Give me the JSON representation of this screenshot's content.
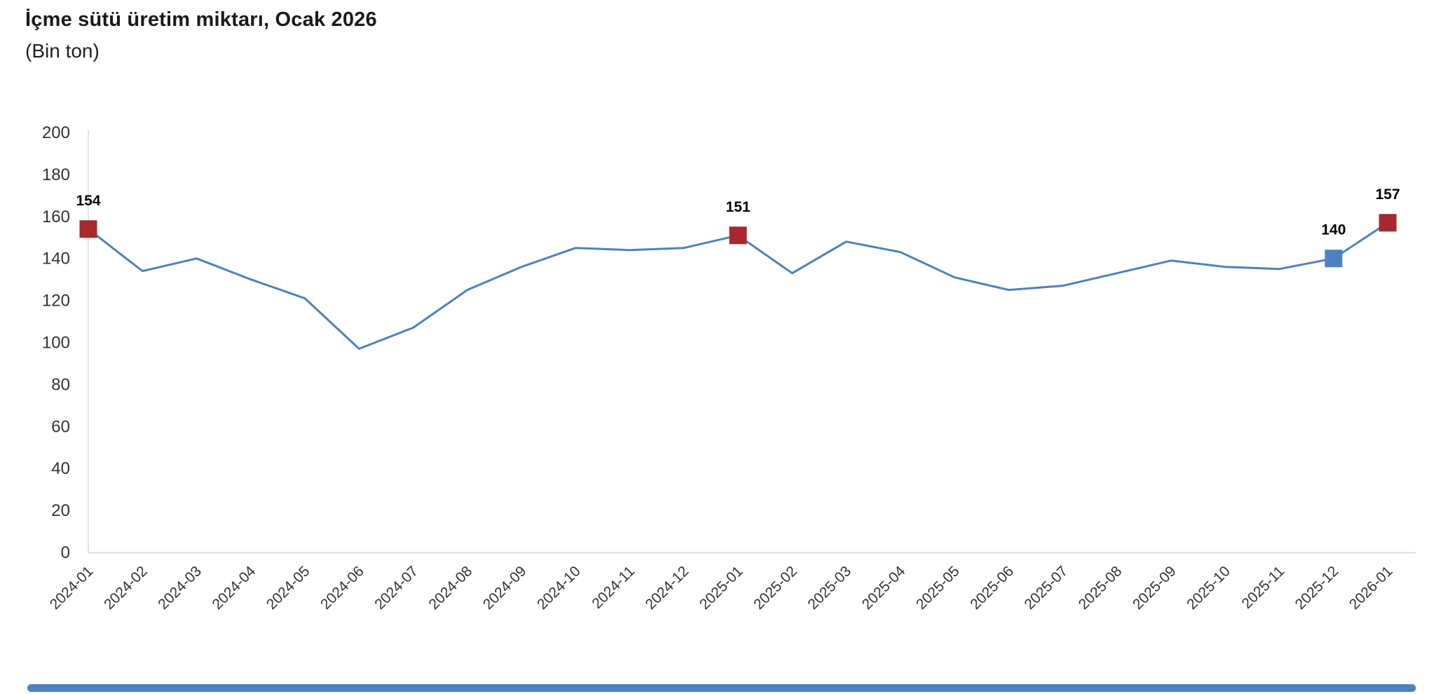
{
  "header": {
    "title": "İçme sütü üretim miktarı, Ocak 2026",
    "subtitle": "(Bin ton)"
  },
  "chart_data": {
    "type": "line",
    "title": "İçme sütü üretim miktarı, Ocak 2026",
    "ylabel": "(Bin ton)",
    "xlabel": "",
    "x": [
      "2024-01",
      "2024-02",
      "2024-03",
      "2024-04",
      "2024-05",
      "2024-06",
      "2024-07",
      "2024-08",
      "2024-09",
      "2024-10",
      "2024-11",
      "2024-12",
      "2025-01",
      "2025-02",
      "2025-03",
      "2025-04",
      "2025-05",
      "2025-06",
      "2025-07",
      "2025-08",
      "2025-09",
      "2025-10",
      "2025-11",
      "2025-12",
      "2026-01"
    ],
    "values": [
      154,
      134,
      140,
      130,
      121,
      97,
      107,
      125,
      136,
      145,
      144,
      145,
      151,
      133,
      148,
      143,
      131,
      125,
      127,
      133,
      139,
      136,
      135,
      140,
      157
    ],
    "ylim": [
      0,
      200
    ],
    "yticks": [
      0,
      20,
      40,
      60,
      80,
      100,
      120,
      140,
      160,
      180,
      200
    ],
    "grid": false,
    "legend": "none",
    "line_color": "#4e81bd",
    "highlighted_points": [
      {
        "x": "2024-01",
        "value": 154,
        "label": "154",
        "marker_color": "#a5292d"
      },
      {
        "x": "2025-01",
        "value": 151,
        "label": "151",
        "marker_color": "#a5292d"
      },
      {
        "x": "2025-12",
        "value": 140,
        "label": "140",
        "marker_color": "#4d82c1"
      },
      {
        "x": "2026-01",
        "value": 157,
        "label": "157",
        "marker_color": "#a5292d"
      }
    ]
  },
  "colors": {
    "axis_line": "#dde2e9",
    "baseline": "#dcdcdc",
    "tick_text": "#333333",
    "point_label_text": "#000000",
    "scrollbar": "#4d82c1"
  }
}
